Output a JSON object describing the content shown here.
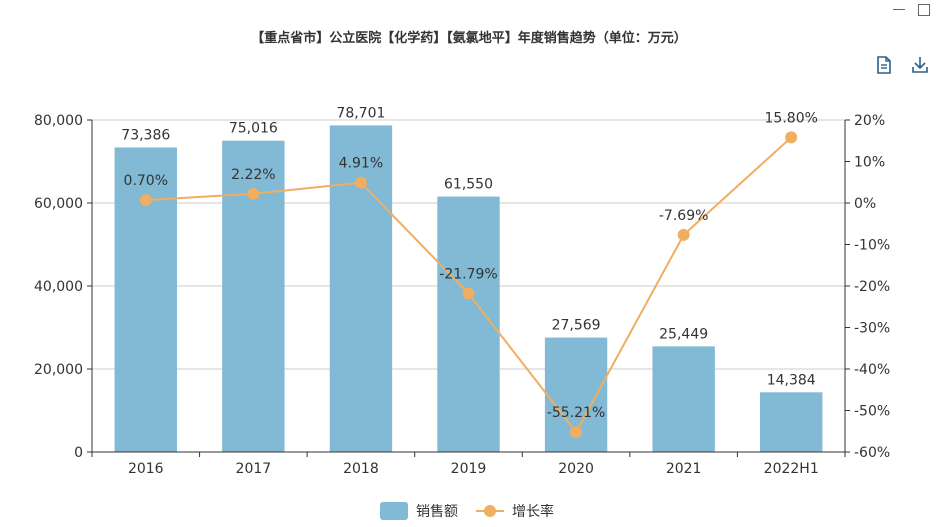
{
  "window": {
    "minimize_icon": "minimize-icon",
    "maximize_icon": "maximize-icon"
  },
  "toolbox": {
    "data_view_icon": "document-icon",
    "save_icon": "download-icon"
  },
  "chart_data": {
    "type": "bar",
    "title": "【重点省市】公立医院【化学药】【氨氯地平】年度销售趋势（单位：万元）",
    "categories": [
      "2016",
      "2017",
      "2018",
      "2019",
      "2020",
      "2021",
      "2022H1"
    ],
    "series": [
      {
        "name": "销售额",
        "type": "bar",
        "axis": "left",
        "color": "#82b9d4",
        "values": [
          73386,
          75016,
          78701,
          61550,
          27569,
          25449,
          14384
        ],
        "labels": [
          "73,386",
          "75,016",
          "78,701",
          "61,550",
          "27,569",
          "25,449",
          "14,384"
        ]
      },
      {
        "name": "增长率",
        "type": "line",
        "axis": "right",
        "color": "#efae61",
        "values": [
          0.7,
          2.22,
          4.91,
          -21.79,
          -55.21,
          -7.69,
          15.8
        ],
        "labels": [
          "0.70%",
          "2.22%",
          "4.91%",
          "-21.79%",
          "-55.21%",
          "-7.69%",
          "15.80%"
        ]
      }
    ],
    "y_left": {
      "min": 0,
      "max": 80000,
      "ticks": [
        0,
        20000,
        40000,
        60000,
        80000
      ],
      "tick_labels": [
        "0",
        "20,000",
        "40,000",
        "60,000",
        "80,000"
      ]
    },
    "y_right": {
      "min": -60,
      "max": 20,
      "ticks": [
        -60,
        -50,
        -40,
        -30,
        -20,
        -10,
        0,
        10,
        20
      ],
      "tick_labels": [
        "-60%",
        "-50%",
        "-40%",
        "-30%",
        "-20%",
        "-10%",
        "0%",
        "10%",
        "20%"
      ]
    },
    "grid": true,
    "legend_position": "bottom-center"
  }
}
